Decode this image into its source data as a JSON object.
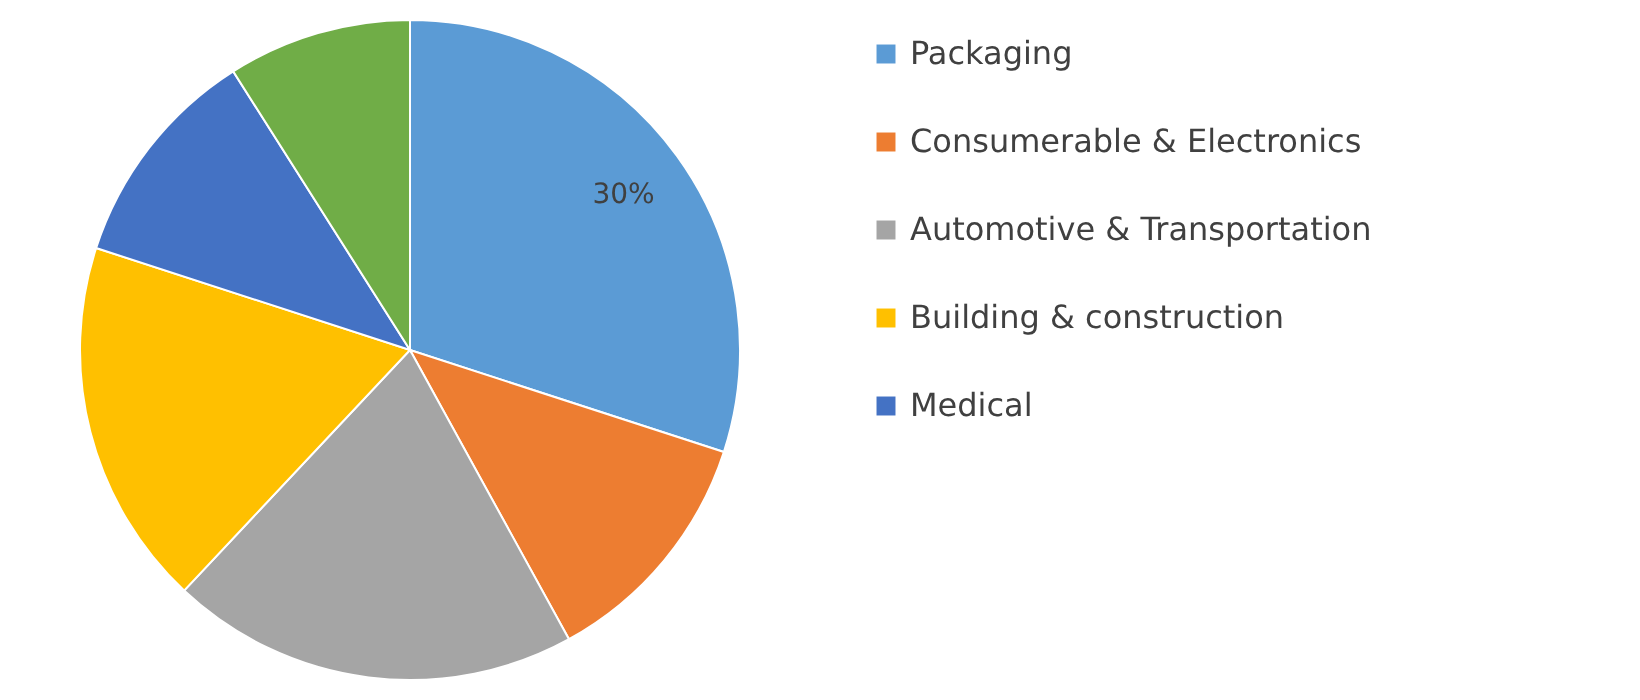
{
  "chart_data": {
    "type": "pie",
    "categories": [
      "Packaging",
      "Consumerable & Electronics",
      "Automotive & Transportation",
      "Building & construction",
      "Medical",
      null
    ],
    "values": [
      30,
      12,
      20,
      18,
      11,
      9
    ],
    "colors": [
      "#5b9bd5",
      "#ed7d31",
      "#a5a5a5",
      "#ffc000",
      "#4472c4",
      "#70ad47"
    ],
    "value_labels": [
      "30%",
      null,
      null,
      null,
      null,
      null
    ],
    "legend": "right"
  }
}
